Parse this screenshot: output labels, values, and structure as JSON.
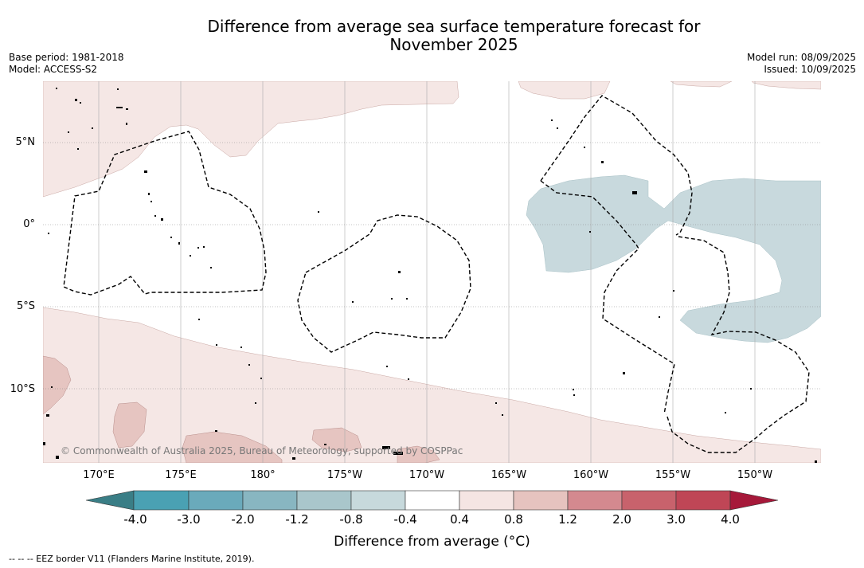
{
  "title_line1": "Difference from average sea surface temperature forecast for",
  "title_line2": "November 2025",
  "meta_left": {
    "base_period": "Base period: 1981-2018",
    "model": "Model: ACCESS-S2"
  },
  "meta_right": {
    "model_run": "Model run: 08/09/2025",
    "issued": "Issued: 10/09/2025"
  },
  "lat_labels": [
    "5°N",
    "0°",
    "5°S",
    "10°S"
  ],
  "lon_labels": [
    "170°E",
    "175°E",
    "180°",
    "175°W",
    "170°W",
    "165°W",
    "160°W",
    "155°W",
    "150°W"
  ],
  "copyright": "© Commonwealth of Australia 2025, Bureau of Meteorology, supported by COSPPac",
  "colorbar": {
    "ticks": [
      "-4.0",
      "-3.0",
      "-2.0",
      "-1.2",
      "-0.8",
      "-0.4",
      "0.4",
      "0.8",
      "1.2",
      "2.0",
      "3.0",
      "4.0"
    ],
    "colors": [
      "#3a7e86",
      "#4aa1b3",
      "#6aaabb",
      "#88b6c1",
      "#a9c6cb",
      "#c7d9dc",
      "#ffffff",
      "#f5e5e3",
      "#e6c3bf",
      "#d4898f",
      "#c8626c",
      "#bf4656",
      "#a6193a"
    ],
    "label": "Difference from average (°C)"
  },
  "footnote": "--  --  -- EEZ border V11 (Flanders Marine Institute, 2019)."
}
